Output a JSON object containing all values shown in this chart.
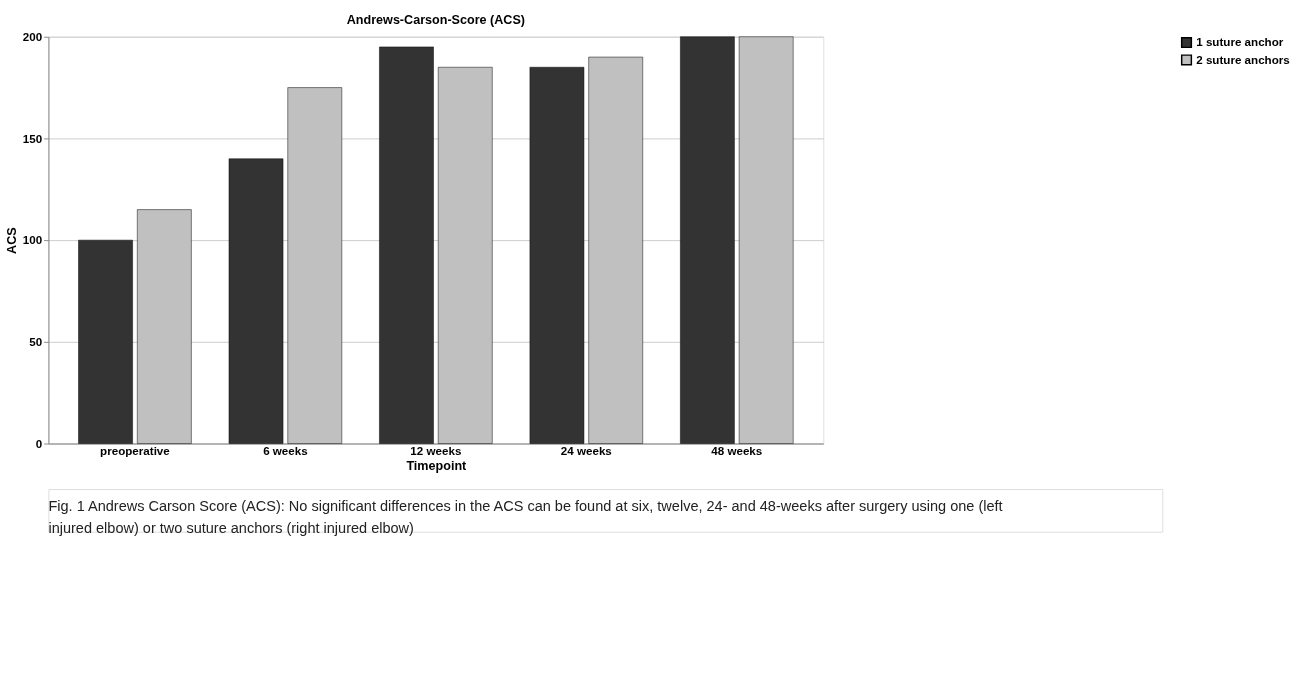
{
  "chart_data": {
    "type": "bar",
    "title": "Andrews-Carson-Score (ACS)",
    "xlabel": "Timepoint",
    "ylabel": "ACS",
    "categories": [
      "preoperative",
      "6 weeks",
      "12 weeks",
      "24 weeks",
      "48 weeks"
    ],
    "series": [
      {
        "name": "1 suture anchor",
        "color": "#333333",
        "values": [
          100,
          140,
          195,
          185,
          200
        ]
      },
      {
        "name": "2 suture anchors",
        "color": "#c0c0c0",
        "values": [
          115,
          175,
          185,
          190,
          200
        ]
      }
    ],
    "ylim": [
      0,
      200
    ],
    "yticks": [
      0,
      50,
      100,
      150,
      200
    ],
    "grid": "y",
    "legend": "top right",
    "annotations": [
      "Fig. 1 Andrews Carson Score (ACS): No significant differences in the ACS can be found at six, twelve, 24- and 48-weeks after surgery using one (left injured elbow) or two suture anchors (right injured elbow)"
    ]
  }
}
